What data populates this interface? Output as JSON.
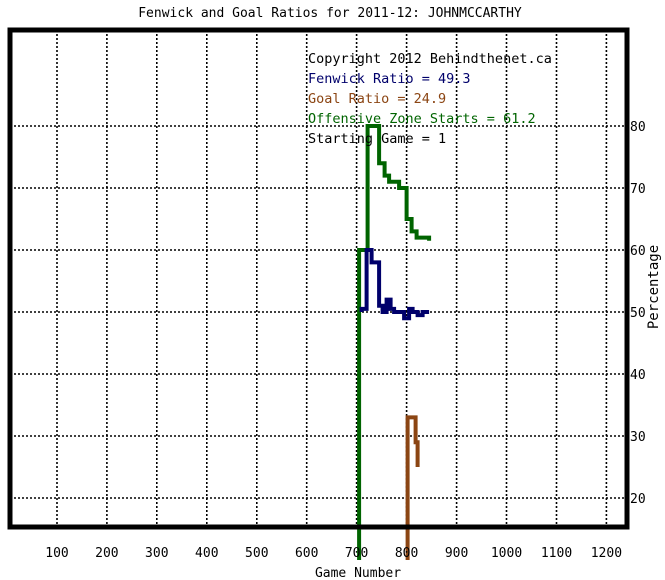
{
  "chart_data": {
    "type": "line",
    "title": "Fenwick and Goal Ratios for 2011-12: JOHNMCCARTHY",
    "xlabel": "Game Number",
    "ylabel": "Percentage",
    "xlim": [
      0,
      1220
    ],
    "ylim": [
      10,
      90
    ],
    "x_ticks": [
      100,
      200,
      300,
      400,
      500,
      600,
      700,
      800,
      900,
      1000,
      1100,
      1200
    ],
    "y_ticks": [
      20,
      30,
      40,
      50,
      60,
      70,
      80
    ],
    "grid": true,
    "legend_position": "top-right",
    "annotations": [
      {
        "text": "Copyright 2012 Behindthenet.ca",
        "color": "#000000"
      },
      {
        "text": "Fenwick Ratio = 49.3",
        "color": "#00006b"
      },
      {
        "text": "Goal Ratio = 24.9",
        "color": "#8b4513"
      },
      {
        "text": "Offensive Zone Starts = 61.2",
        "color": "#006400"
      },
      {
        "text": "Starting Game = 1",
        "color": "#000000"
      }
    ],
    "series": [
      {
        "color": "#006400",
        "points": [
          [
            705,
            10
          ],
          [
            705,
            60
          ],
          [
            722,
            60
          ],
          [
            722,
            80
          ],
          [
            745,
            80
          ],
          [
            745,
            74
          ],
          [
            756,
            74
          ],
          [
            756,
            72
          ],
          [
            765,
            72
          ],
          [
            765,
            71
          ],
          [
            785,
            71
          ],
          [
            785,
            70
          ],
          [
            800,
            70
          ],
          [
            800,
            65
          ],
          [
            810,
            65
          ],
          [
            810,
            63
          ],
          [
            820,
            63
          ],
          [
            820,
            62
          ],
          [
            845,
            62
          ],
          [
            845,
            61.5
          ]
        ]
      },
      {
        "color": "#00006b",
        "points": [
          [
            710,
            50
          ],
          [
            710,
            50.5
          ],
          [
            720,
            50.5
          ],
          [
            720,
            60
          ],
          [
            730,
            60
          ],
          [
            730,
            58
          ],
          [
            745,
            58
          ],
          [
            745,
            51
          ],
          [
            752,
            51
          ],
          [
            752,
            50
          ],
          [
            760,
            50
          ],
          [
            760,
            52
          ],
          [
            768,
            52
          ],
          [
            768,
            50.5
          ],
          [
            775,
            50.5
          ],
          [
            775,
            50
          ],
          [
            795,
            50
          ],
          [
            795,
            49
          ],
          [
            805,
            49
          ],
          [
            805,
            50.5
          ],
          [
            812,
            50.5
          ],
          [
            812,
            50
          ],
          [
            822,
            50
          ],
          [
            822,
            49.5
          ],
          [
            832,
            49.5
          ],
          [
            832,
            50
          ],
          [
            845,
            50
          ]
        ]
      },
      {
        "color": "#8b4513",
        "points": [
          [
            802,
            10
          ],
          [
            802,
            33
          ],
          [
            818,
            33
          ],
          [
            818,
            29
          ],
          [
            822,
            29
          ],
          [
            822,
            25
          ]
        ]
      }
    ]
  }
}
